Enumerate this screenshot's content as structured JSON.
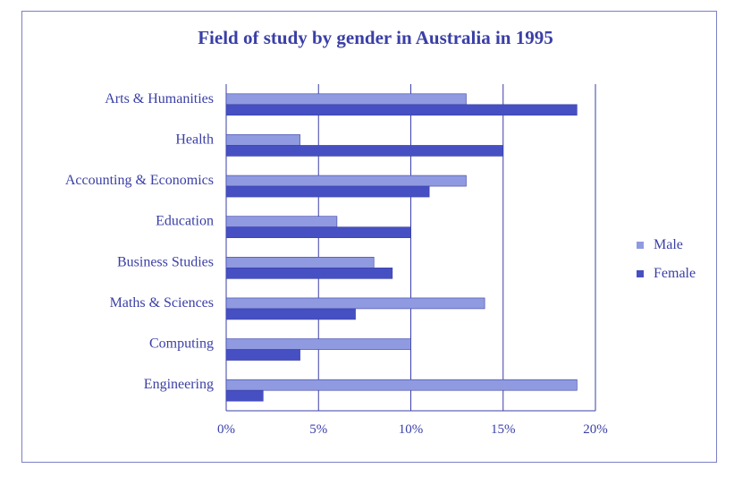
{
  "chart_data": {
    "type": "bar",
    "orientation": "horizontal",
    "title": "Field of study by gender in Australia in 1995",
    "categories": [
      "Arts & Humanities",
      "Health",
      "Accounting & Economics",
      "Education",
      "Business Studies",
      "Maths & Sciences",
      "Computing",
      "Engineering"
    ],
    "series": [
      {
        "name": "Male",
        "color": "#8f9ae0",
        "values": [
          13,
          4,
          13,
          6,
          8,
          14,
          10,
          19
        ]
      },
      {
        "name": "Female",
        "color": "#4650c2",
        "values": [
          19,
          15,
          11,
          10,
          9,
          7,
          4,
          2
        ]
      }
    ],
    "xlim": [
      0,
      20
    ],
    "xticks": [
      0,
      5,
      10,
      15,
      20
    ],
    "xtick_labels": [
      "0%",
      "5%",
      "10%",
      "15%",
      "20%"
    ],
    "grid": "vertical",
    "legend": "right"
  }
}
